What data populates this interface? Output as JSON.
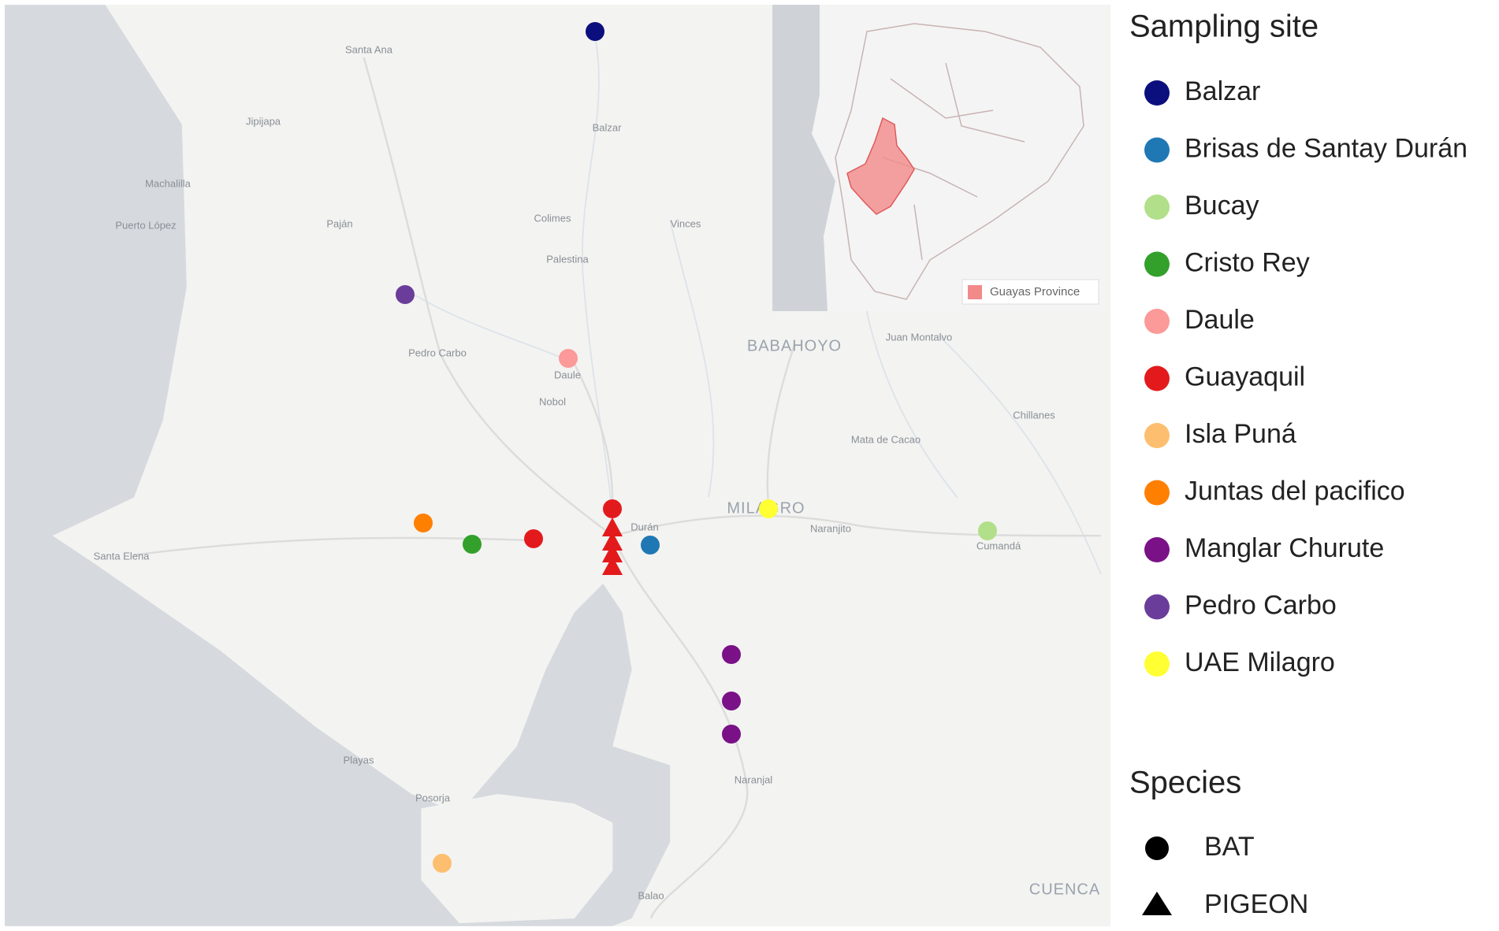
{
  "map": {
    "place_labels": [
      "Santa Ana",
      "Jipijapa",
      "Machalilla",
      "Puerto López",
      "Paján",
      "Colimes",
      "Vinces",
      "Palestina",
      "Balzar",
      "Pedro Carbo",
      "Daule",
      "Nobol",
      "BABAHOYO",
      "Juan Montalvo",
      "Chillanes",
      "Mata de Cacao",
      "MILAGRO",
      "Naranjito",
      "Durán",
      "Cumandá",
      "Santa Elena",
      "Playas",
      "Posorja",
      "Naranjal",
      "Balao",
      "CUENCA"
    ],
    "inset_legend": "Guayas Province"
  },
  "legend": {
    "sampling_site": {
      "title": "Sampling site",
      "items": [
        {
          "label": "Balzar",
          "color": "#0b0f7e"
        },
        {
          "label": "Brisas de Santay Durán",
          "color": "#1f78b4"
        },
        {
          "label": "Bucay",
          "color": "#b2df8a"
        },
        {
          "label": "Cristo Rey",
          "color": "#33a02c"
        },
        {
          "label": "Daule",
          "color": "#fb9a99"
        },
        {
          "label": "Guayaquil",
          "color": "#e31a1c"
        },
        {
          "label": "Isla Puná",
          "color": "#fdbf6f"
        },
        {
          "label": "Juntas del pacifico",
          "color": "#ff7f00"
        },
        {
          "label": "Manglar Churute",
          "color": "#7a1187"
        },
        {
          "label": "Pedro Carbo",
          "color": "#6a3d9a"
        },
        {
          "label": "UAE Milagro",
          "color": "#ffff33"
        }
      ]
    },
    "species": {
      "title": "Species",
      "items": [
        "BAT",
        "PIGEON"
      ]
    }
  }
}
